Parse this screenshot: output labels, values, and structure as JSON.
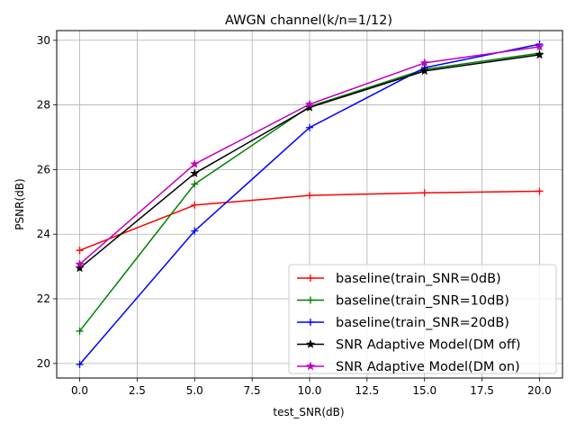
{
  "chart_data": {
    "type": "line",
    "title": "AWGN channel(k/n=1/12)",
    "xlabel": "test_SNR(dB)",
    "ylabel": "PSNR(dB)",
    "xlim": [
      -1.0,
      21.0
    ],
    "ylim": [
      19.55,
      30.3
    ],
    "x_ticks": [
      0.0,
      2.5,
      5.0,
      7.5,
      10.0,
      12.5,
      15.0,
      17.5,
      20.0
    ],
    "x_tick_labels": [
      "0.0",
      "2.5",
      "5.0",
      "7.5",
      "10.0",
      "12.5",
      "15.0",
      "17.5",
      "20.0"
    ],
    "y_ticks": [
      20,
      22,
      24,
      26,
      28,
      30
    ],
    "y_tick_labels": [
      "20",
      "22",
      "24",
      "26",
      "28",
      "30"
    ],
    "grid": true,
    "legend_position": "bottom-right",
    "x": [
      0,
      5,
      10,
      15,
      20
    ],
    "series": [
      {
        "name": "baseline(train_SNR=0dB)",
        "color": "#ff0000",
        "marker": "plus",
        "values": [
          23.5,
          24.9,
          25.2,
          25.28,
          25.33
        ]
      },
      {
        "name": "baseline(train_SNR=10dB)",
        "color": "#008000",
        "marker": "plus",
        "values": [
          21.0,
          25.55,
          27.95,
          29.1,
          29.6
        ]
      },
      {
        "name": "baseline(train_SNR=20dB)",
        "color": "#0000ff",
        "marker": "plus",
        "values": [
          19.97,
          24.1,
          27.3,
          29.15,
          29.88
        ]
      },
      {
        "name": "SNR Adaptive Model(DM off)",
        "color": "#000000",
        "marker": "star",
        "values": [
          22.95,
          25.88,
          27.92,
          29.05,
          29.55
        ]
      },
      {
        "name": "SNR Adaptive Model(DM on)",
        "color": "#bf00bf",
        "marker": "star",
        "values": [
          23.07,
          26.17,
          28.02,
          29.3,
          29.8
        ]
      }
    ]
  }
}
